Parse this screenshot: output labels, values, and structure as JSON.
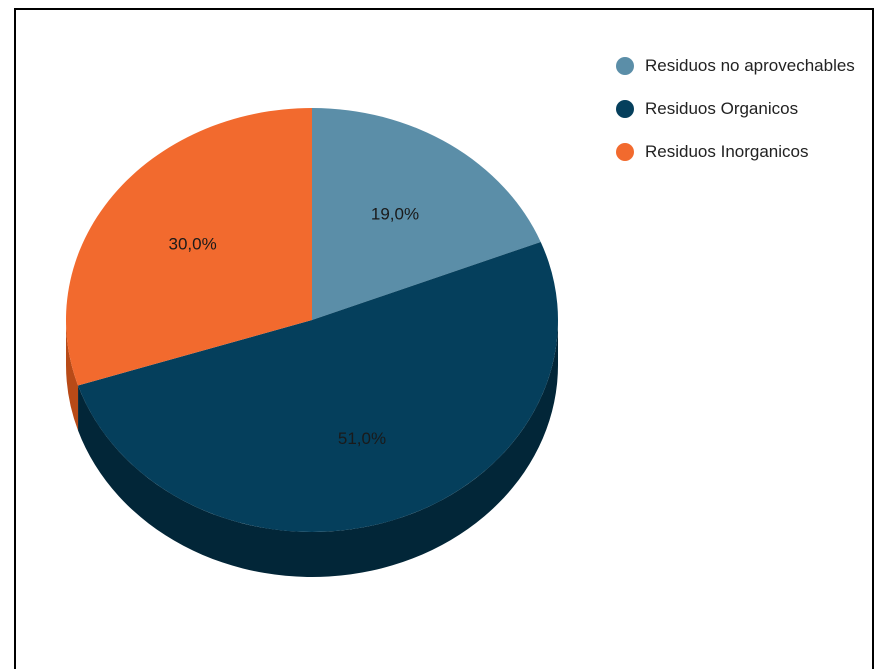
{
  "chart_data": {
    "type": "pie",
    "style": "3d",
    "slices": [
      {
        "label": "Residuos no aprovechables",
        "value": 19.0,
        "display": "19,0%",
        "color": "#5b8ea8",
        "side_color": "#3f6a80"
      },
      {
        "label": "Residuos Organicos",
        "value": 51.0,
        "display": "51,0%",
        "color": "#053f5c",
        "side_color": "#022638"
      },
      {
        "label": "Residuos Inorganicos",
        "value": 30.0,
        "display": "30,0%",
        "color": "#f26a2e",
        "side_color": "#b84a17"
      }
    ],
    "legend_position": "top-right"
  }
}
